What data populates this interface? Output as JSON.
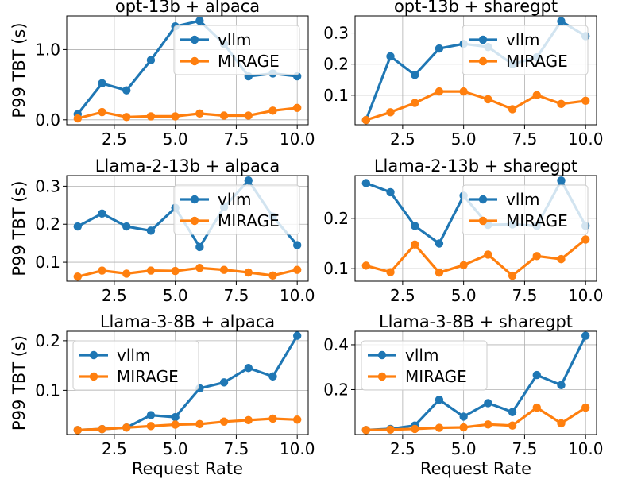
{
  "figure": {
    "xlabel": "Request Rate",
    "ylabel": "P99 TBT (s)",
    "legend": [
      "vllm",
      "MIRAGE"
    ],
    "colors": {
      "vllm": "#1f77b4",
      "MIRAGE": "#ff7f0e"
    }
  },
  "chart_data": [
    {
      "type": "line",
      "title": "opt-13b + alpaca",
      "x": [
        1,
        2,
        3,
        4,
        5,
        6,
        7,
        8,
        9,
        10
      ],
      "series": [
        {
          "name": "vllm",
          "values": [
            0.08,
            0.52,
            0.42,
            0.85,
            1.33,
            1.41,
            1.08,
            0.62,
            0.66,
            0.62
          ]
        },
        {
          "name": "MIRAGE",
          "values": [
            0.02,
            0.11,
            0.04,
            0.05,
            0.05,
            0.09,
            0.06,
            0.06,
            0.13,
            0.17
          ]
        }
      ],
      "xlim": [
        0.55,
        10.45
      ],
      "ylim": [
        -0.07,
        1.48
      ],
      "xticks": [
        2.5,
        5.0,
        7.5,
        10.0
      ],
      "xtick_labels": [
        "2.5",
        "5.0",
        "7.5",
        "10.0"
      ],
      "yticks": [
        0.0,
        1.0
      ],
      "ytick_labels": [
        "0.0",
        "1.0"
      ],
      "grid": true,
      "legend_position": "upper-center",
      "show_ylabel": true,
      "show_xlabel": false
    },
    {
      "type": "line",
      "title": "opt-13b + sharegpt",
      "x": [
        1,
        2,
        3,
        4,
        5,
        6,
        7,
        8,
        9,
        10
      ],
      "series": [
        {
          "name": "vllm",
          "values": [
            0.02,
            0.225,
            0.165,
            0.25,
            0.265,
            0.255,
            0.2,
            0.222,
            0.338,
            0.29
          ]
        },
        {
          "name": "MIRAGE",
          "values": [
            0.02,
            0.045,
            0.075,
            0.112,
            0.112,
            0.087,
            0.055,
            0.1,
            0.072,
            0.082
          ]
        }
      ],
      "xlim": [
        0.55,
        10.45
      ],
      "ylim": [
        0.005,
        0.355
      ],
      "xticks": [
        2.5,
        5.0,
        7.5,
        10.0
      ],
      "xtick_labels": [
        "2.5",
        "5.0",
        "7.5",
        "10.0"
      ],
      "yticks": [
        0.1,
        0.2,
        0.3
      ],
      "ytick_labels": [
        "0.1",
        "0.2",
        "0.3"
      ],
      "grid": true,
      "legend_position": "upper-center",
      "show_ylabel": false,
      "show_xlabel": false
    },
    {
      "type": "line",
      "title": "Llama-2-13b + alpaca",
      "x": [
        1,
        2,
        3,
        4,
        5,
        6,
        7,
        8,
        9,
        10
      ],
      "series": [
        {
          "name": "vllm",
          "values": [
            0.194,
            0.228,
            0.194,
            0.183,
            0.243,
            0.14,
            0.245,
            0.315,
            0.22,
            0.145
          ]
        },
        {
          "name": "MIRAGE",
          "values": [
            0.062,
            0.078,
            0.07,
            0.078,
            0.077,
            0.085,
            0.08,
            0.073,
            0.065,
            0.08
          ]
        }
      ],
      "xlim": [
        0.55,
        10.45
      ],
      "ylim": [
        0.05,
        0.328
      ],
      "xticks": [
        2.5,
        5.0,
        7.5,
        10.0
      ],
      "xtick_labels": [
        "2.5",
        "5.0",
        "7.5",
        "10.0"
      ],
      "yticks": [
        0.1,
        0.2,
        0.3
      ],
      "ytick_labels": [
        "0.1",
        "0.2",
        "0.3"
      ],
      "grid": true,
      "legend_position": "upper-center",
      "show_ylabel": true,
      "show_xlabel": false
    },
    {
      "type": "line",
      "title": "Llama-2-13b + sharegpt",
      "x": [
        1,
        2,
        3,
        4,
        5,
        6,
        7,
        8,
        9,
        10
      ],
      "series": [
        {
          "name": "vllm",
          "values": [
            0.27,
            0.252,
            0.185,
            0.15,
            0.245,
            0.187,
            0.188,
            0.185,
            0.275,
            0.185
          ]
        },
        {
          "name": "MIRAGE",
          "values": [
            0.106,
            0.093,
            0.148,
            0.092,
            0.107,
            0.128,
            0.086,
            0.125,
            0.119,
            0.158
          ]
        }
      ],
      "xlim": [
        0.55,
        10.45
      ],
      "ylim": [
        0.075,
        0.285
      ],
      "xticks": [
        2.5,
        5.0,
        7.5,
        10.0
      ],
      "xtick_labels": [
        "2.5",
        "5.0",
        "7.5",
        "10.0"
      ],
      "yticks": [
        0.1,
        0.2
      ],
      "ytick_labels": [
        "0.1",
        "0.2"
      ],
      "grid": true,
      "legend_position": "upper-center",
      "show_ylabel": false,
      "show_xlabel": false
    },
    {
      "type": "line",
      "title": "Llama-3-8B + alpaca",
      "x": [
        1,
        2,
        3,
        4,
        5,
        6,
        7,
        8,
        9,
        10
      ],
      "series": [
        {
          "name": "vllm",
          "values": [
            0.02,
            0.022,
            0.025,
            0.05,
            0.046,
            0.104,
            0.116,
            0.145,
            0.128,
            0.21
          ]
        },
        {
          "name": "MIRAGE",
          "values": [
            0.02,
            0.022,
            0.025,
            0.028,
            0.031,
            0.032,
            0.037,
            0.04,
            0.043,
            0.041
          ]
        }
      ],
      "xlim": [
        0.55,
        10.45
      ],
      "ylim": [
        0.011,
        0.219
      ],
      "xticks": [
        2.5,
        5.0,
        7.5,
        10.0
      ],
      "xtick_labels": [
        "2.5",
        "5.0",
        "7.5",
        "10.0"
      ],
      "yticks": [
        0.1,
        0.2
      ],
      "ytick_labels": [
        "0.1",
        "0.2"
      ],
      "grid": true,
      "legend_position": "upper-left",
      "show_ylabel": true,
      "show_xlabel": true
    },
    {
      "type": "line",
      "title": "Llama-3-8B + sharegpt",
      "x": [
        1,
        2,
        3,
        4,
        5,
        6,
        7,
        8,
        9,
        10
      ],
      "series": [
        {
          "name": "vllm",
          "values": [
            0.02,
            0.025,
            0.04,
            0.155,
            0.08,
            0.14,
            0.1,
            0.265,
            0.22,
            0.44
          ]
        },
        {
          "name": "MIRAGE",
          "values": [
            0.02,
            0.022,
            0.025,
            0.03,
            0.032,
            0.045,
            0.04,
            0.12,
            0.05,
            0.12
          ]
        }
      ],
      "xlim": [
        0.55,
        10.45
      ],
      "ylim": [
        0.0,
        0.46
      ],
      "xticks": [
        2.5,
        5.0,
        7.5,
        10.0
      ],
      "xtick_labels": [
        "2.5",
        "5.0",
        "7.5",
        "10.0"
      ],
      "yticks": [
        0.2,
        0.4
      ],
      "ytick_labels": [
        "0.2",
        "0.4"
      ],
      "grid": true,
      "legend_position": "upper-left",
      "show_ylabel": false,
      "show_xlabel": true
    }
  ]
}
